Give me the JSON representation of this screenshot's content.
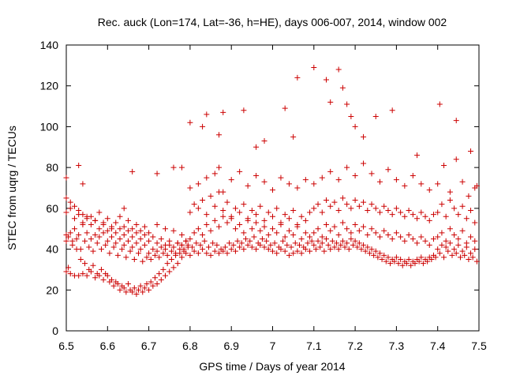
{
  "chart_data": {
    "type": "scatter",
    "title": "Rec. auck (Lon=174, Lat=-36, h=HE), days 006-007, 2014, window 002",
    "xlabel": "GPS time / Days of year 2014",
    "ylabel": "STEC from uqrg / TECUs",
    "xlim": [
      6.5,
      7.5
    ],
    "ylim": [
      0,
      140
    ],
    "xticks": [
      "6.5",
      "6.6",
      "6.7",
      "6.8",
      "6.9",
      "7",
      "7.1",
      "7.2",
      "7.3",
      "7.4",
      "7.5"
    ],
    "yticks": [
      "0",
      "20",
      "40",
      "60",
      "80",
      "100",
      "120",
      "140"
    ],
    "marker": "+",
    "color": "#cc0000",
    "series": [
      {
        "name": "STEC",
        "x": [
          6.5,
          6.5,
          6.505,
          6.51,
          6.515,
          6.52,
          6.525,
          6.53,
          6.535,
          6.54,
          6.545,
          6.55,
          6.555,
          6.56,
          6.565,
          6.57,
          6.575,
          6.58,
          6.585,
          6.59,
          6.595,
          6.6,
          6.605,
          6.61,
          6.615,
          6.62,
          6.625,
          6.63,
          6.635,
          6.64,
          6.645,
          6.65,
          6.655,
          6.66,
          6.665,
          6.67,
          6.675,
          6.68,
          6.685,
          6.69,
          6.695,
          6.7,
          6.705,
          6.71,
          6.715,
          6.72,
          6.725,
          6.73,
          6.735,
          6.74,
          6.745,
          6.75,
          6.755,
          6.76,
          6.765,
          6.77,
          6.775,
          6.78,
          6.785,
          6.79,
          6.795,
          6.5,
          6.505,
          6.51,
          6.515,
          6.52,
          6.525,
          6.53,
          6.535,
          6.54,
          6.545,
          6.55,
          6.555,
          6.56,
          6.565,
          6.57,
          6.575,
          6.58,
          6.585,
          6.59,
          6.595,
          6.6,
          6.605,
          6.61,
          6.615,
          6.62,
          6.625,
          6.63,
          6.635,
          6.64,
          6.645,
          6.65,
          6.655,
          6.66,
          6.665,
          6.67,
          6.675,
          6.68,
          6.685,
          6.69,
          6.695,
          6.7,
          6.705,
          6.71,
          6.715,
          6.72,
          6.725,
          6.73,
          6.735,
          6.74,
          6.745,
          6.75,
          6.755,
          6.76,
          6.765,
          6.77,
          6.775,
          6.78,
          6.785,
          6.79,
          6.795,
          6.5,
          6.51,
          6.52,
          6.53,
          6.54,
          6.55,
          6.56,
          6.57,
          6.58,
          6.59,
          6.6,
          6.61,
          6.62,
          6.63,
          6.64,
          6.65,
          6.66,
          6.67,
          6.68,
          6.69,
          6.7,
          6.71,
          6.72,
          6.73,
          6.74,
          6.75,
          6.76,
          6.77,
          6.78,
          6.79,
          6.5,
          6.51,
          6.52,
          6.53,
          6.54,
          6.55,
          6.56,
          6.57,
          6.58,
          6.59,
          6.6,
          6.61,
          6.62,
          6.63,
          6.64,
          6.65,
          6.66,
          6.67,
          6.68,
          6.69,
          6.7,
          6.72,
          6.74,
          6.76,
          6.78,
          6.5,
          6.53,
          6.54,
          6.64,
          6.66,
          6.72,
          6.76,
          6.78,
          6.8,
          6.805,
          6.81,
          6.815,
          6.82,
          6.825,
          6.83,
          6.835,
          6.84,
          6.845,
          6.85,
          6.855,
          6.86,
          6.865,
          6.87,
          6.875,
          6.88,
          6.885,
          6.89,
          6.895,
          6.9,
          6.905,
          6.91,
          6.915,
          6.92,
          6.925,
          6.93,
          6.935,
          6.94,
          6.945,
          6.95,
          6.955,
          6.96,
          6.965,
          6.97,
          6.975,
          6.98,
          6.985,
          6.99,
          6.995,
          7.0,
          7.005,
          7.01,
          7.015,
          7.02,
          7.025,
          7.03,
          7.035,
          7.04,
          7.045,
          7.05,
          7.055,
          7.06,
          7.065,
          7.07,
          7.075,
          7.08,
          7.085,
          7.09,
          7.095,
          6.8,
          6.81,
          6.82,
          6.83,
          6.84,
          6.85,
          6.86,
          6.87,
          6.88,
          6.89,
          6.9,
          6.91,
          6.92,
          6.93,
          6.94,
          6.95,
          6.96,
          6.97,
          6.98,
          6.99,
          7.0,
          7.01,
          7.02,
          7.03,
          7.04,
          7.05,
          7.06,
          7.07,
          7.08,
          7.09,
          6.8,
          6.81,
          6.82,
          6.83,
          6.84,
          6.85,
          6.86,
          6.87,
          6.88,
          6.89,
          6.9,
          6.91,
          6.92,
          6.93,
          6.94,
          6.95,
          6.96,
          6.97,
          6.98,
          6.99,
          7.0,
          7.01,
          7.02,
          7.03,
          7.04,
          7.05,
          7.06,
          7.07,
          7.08,
          7.09,
          6.8,
          6.82,
          6.84,
          6.86,
          6.87,
          6.88,
          6.9,
          6.92,
          6.94,
          6.96,
          6.98,
          7.0,
          7.02,
          7.04,
          7.06,
          7.08,
          6.8,
          6.83,
          6.84,
          6.87,
          6.88,
          6.93,
          6.96,
          6.98,
          7.03,
          7.05,
          7.06,
          7.1,
          7.13,
          7.14,
          7.16,
          7.17,
          7.18,
          7.19,
          7.2,
          7.1,
          7.105,
          7.11,
          7.115,
          7.12,
          7.125,
          7.13,
          7.135,
          7.14,
          7.145,
          7.15,
          7.155,
          7.16,
          7.165,
          7.17,
          7.175,
          7.18,
          7.185,
          7.19,
          7.195,
          7.2,
          7.205,
          7.21,
          7.215,
          7.22,
          7.225,
          7.23,
          7.235,
          7.24,
          7.245,
          7.25,
          7.255,
          7.26,
          7.265,
          7.27,
          7.275,
          7.28,
          7.285,
          7.29,
          7.295,
          7.3,
          7.305,
          7.31,
          7.315,
          7.32,
          7.325,
          7.33,
          7.335,
          7.34,
          7.345,
          7.35,
          7.355,
          7.36,
          7.365,
          7.37,
          7.375,
          7.38,
          7.385,
          7.39,
          7.395,
          7.1,
          7.11,
          7.12,
          7.13,
          7.14,
          7.15,
          7.16,
          7.17,
          7.18,
          7.19,
          7.2,
          7.21,
          7.22,
          7.23,
          7.24,
          7.25,
          7.26,
          7.27,
          7.28,
          7.29,
          7.3,
          7.31,
          7.32,
          7.33,
          7.34,
          7.35,
          7.36,
          7.37,
          7.38,
          7.39,
          7.1,
          7.11,
          7.12,
          7.13,
          7.14,
          7.15,
          7.16,
          7.17,
          7.18,
          7.19,
          7.2,
          7.21,
          7.22,
          7.23,
          7.24,
          7.25,
          7.26,
          7.27,
          7.28,
          7.29,
          7.3,
          7.31,
          7.32,
          7.33,
          7.34,
          7.35,
          7.36,
          7.37,
          7.38,
          7.39,
          7.1,
          7.12,
          7.14,
          7.16,
          7.18,
          7.2,
          7.22,
          7.24,
          7.26,
          7.28,
          7.3,
          7.32,
          7.34,
          7.36,
          7.38,
          7.22,
          7.25,
          7.29,
          7.35,
          7.4,
          7.405,
          7.41,
          7.415,
          7.42,
          7.425,
          7.43,
          7.435,
          7.44,
          7.445,
          7.45,
          7.455,
          7.46,
          7.465,
          7.47,
          7.475,
          7.48,
          7.485,
          7.49,
          7.495,
          7.4,
          7.41,
          7.42,
          7.43,
          7.44,
          7.45,
          7.46,
          7.47,
          7.48,
          7.49,
          7.4,
          7.41,
          7.42,
          7.43,
          7.44,
          7.45,
          7.46,
          7.47,
          7.48,
          7.49,
          7.4,
          7.415,
          7.43,
          7.445,
          7.46,
          7.475,
          7.49,
          7.405,
          7.445,
          7.48,
          7.495
        ],
        "y": [
          29,
          47,
          31,
          28,
          44,
          27,
          40,
          27,
          35,
          28,
          33,
          27,
          30,
          29,
          32,
          26,
          28,
          27,
          30,
          25,
          28,
          27,
          24,
          25,
          22,
          24,
          23,
          20,
          22,
          21,
          19,
          23,
          20,
          19,
          21,
          18,
          20,
          22,
          19,
          21,
          23,
          20,
          24,
          22,
          26,
          23,
          28,
          25,
          30,
          27,
          33,
          29,
          35,
          31,
          37,
          33,
          38,
          36,
          40,
          38,
          42,
          44,
          46,
          48,
          42,
          50,
          45,
          47,
          40,
          52,
          44,
          48,
          41,
          45,
          39,
          47,
          43,
          46,
          40,
          48,
          42,
          44,
          38,
          46,
          41,
          43,
          37,
          45,
          40,
          42,
          36,
          44,
          39,
          41,
          35,
          43,
          38,
          40,
          34,
          42,
          36,
          38,
          35,
          40,
          37,
          39,
          36,
          41,
          38,
          40,
          37,
          42,
          39,
          41,
          38,
          43,
          40,
          42,
          39,
          44,
          41,
          58,
          60,
          55,
          57,
          53,
          56,
          52,
          54,
          50,
          53,
          49,
          51,
          48,
          50,
          47,
          49,
          46,
          48,
          45,
          47,
          44,
          46,
          43,
          45,
          42,
          44,
          41,
          43,
          42,
          44,
          65,
          63,
          61,
          59,
          57,
          55,
          56,
          54,
          58,
          52,
          55,
          50,
          53,
          56,
          51,
          54,
          50,
          52,
          49,
          51,
          48,
          52,
          50,
          49,
          47,
          75,
          81,
          72,
          60,
          78,
          77,
          80,
          80,
          37,
          41,
          39,
          43,
          38,
          42,
          40,
          44,
          38,
          41,
          37,
          43,
          39,
          42,
          38,
          40,
          39,
          41,
          38,
          43,
          40,
          42,
          39,
          44,
          41,
          43,
          40,
          45,
          42,
          44,
          41,
          46,
          40,
          43,
          42,
          45,
          41,
          44,
          40,
          42,
          39,
          43,
          38,
          41,
          40,
          44,
          39,
          42,
          37,
          41,
          38,
          43,
          39,
          42,
          38,
          41,
          40,
          43,
          39,
          44,
          45,
          48,
          50,
          47,
          52,
          49,
          54,
          51,
          56,
          53,
          55,
          50,
          52,
          48,
          54,
          50,
          53,
          49,
          51,
          47,
          50,
          48,
          52,
          46,
          49,
          47,
          51,
          45,
          48,
          46,
          58,
          62,
          60,
          64,
          57,
          66,
          61,
          68,
          59,
          63,
          56,
          60,
          58,
          62,
          55,
          59,
          57,
          61,
          54,
          58,
          56,
          60,
          53,
          57,
          55,
          59,
          52,
          56,
          54,
          58,
          70,
          72,
          75,
          77,
          80,
          68,
          74,
          78,
          71,
          76,
          73,
          69,
          75,
          72,
          70,
          74,
          102,
          100,
          106,
          96,
          107,
          108,
          90,
          93,
          109,
          95,
          124,
          129,
          123,
          112,
          128,
          119,
          111,
          105,
          100,
          42,
          40,
          44,
          41,
          43,
          39,
          45,
          42,
          40,
          44,
          41,
          43,
          40,
          42,
          44,
          41,
          43,
          40,
          45,
          42,
          44,
          41,
          43,
          40,
          42,
          39,
          41,
          38,
          40,
          37,
          39,
          36,
          38,
          35,
          37,
          34,
          36,
          33,
          35,
          34,
          36,
          33,
          35,
          32,
          34,
          33,
          35,
          32,
          34,
          33,
          35,
          34,
          36,
          33,
          35,
          34,
          36,
          35,
          37,
          36,
          48,
          50,
          46,
          52,
          49,
          51,
          47,
          53,
          50,
          48,
          52,
          49,
          51,
          47,
          50,
          48,
          46,
          49,
          47,
          45,
          48,
          46,
          44,
          47,
          45,
          43,
          46,
          44,
          42,
          45,
          60,
          62,
          58,
          64,
          61,
          63,
          59,
          65,
          62,
          60,
          64,
          61,
          63,
          59,
          62,
          60,
          58,
          61,
          59,
          57,
          60,
          58,
          56,
          59,
          57,
          55,
          58,
          56,
          54,
          57,
          72,
          75,
          78,
          74,
          80,
          76,
          82,
          77,
          73,
          79,
          74,
          71,
          76,
          72,
          69,
          95,
          105,
          108,
          86,
          40,
          38,
          42,
          36,
          41,
          39,
          43,
          37,
          40,
          38,
          42,
          36,
          39,
          37,
          41,
          35,
          38,
          36,
          40,
          34,
          46,
          48,
          44,
          50,
          47,
          45,
          49,
          43,
          46,
          44,
          58,
          62,
          56,
          64,
          60,
          57,
          61,
          55,
          59,
          53,
          72,
          81,
          68,
          84,
          73,
          66,
          70,
          111,
          103,
          88,
          71
        ]
      }
    ]
  }
}
